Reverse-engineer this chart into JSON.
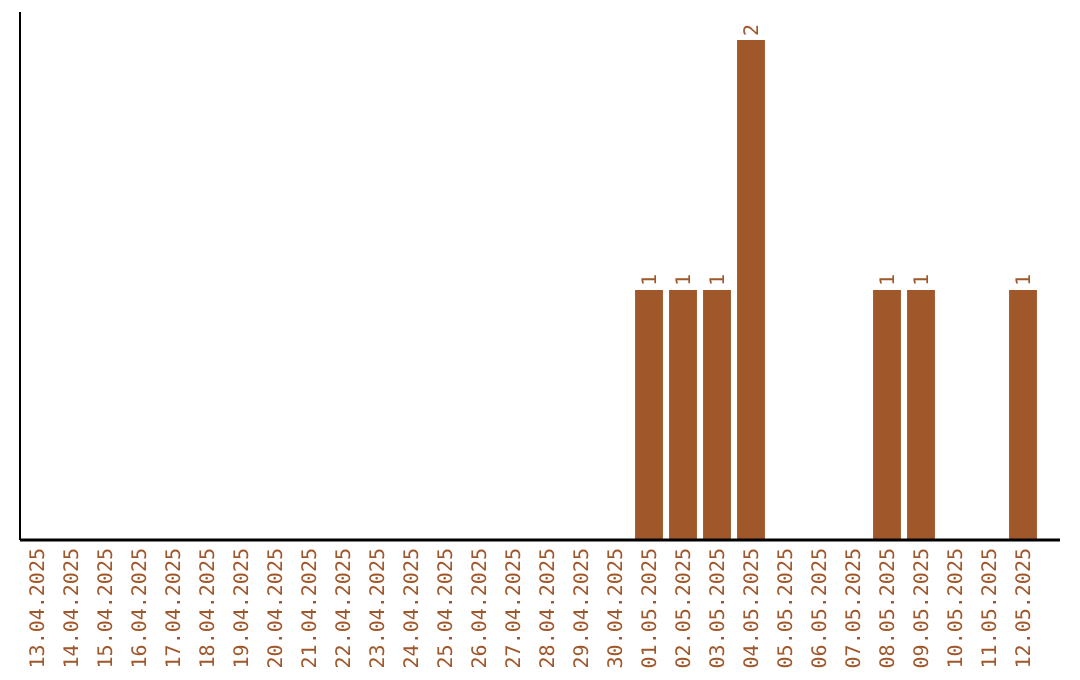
{
  "chart_data": {
    "type": "bar",
    "categories": [
      "13.04.2025",
      "14.04.2025",
      "15.04.2025",
      "16.04.2025",
      "17.04.2025",
      "18.04.2025",
      "19.04.2025",
      "20.04.2025",
      "21.04.2025",
      "22.04.2025",
      "23.04.2025",
      "24.04.2025",
      "25.04.2025",
      "26.04.2025",
      "27.04.2025",
      "28.04.2025",
      "29.04.2025",
      "30.04.2025",
      "01.05.2025",
      "02.05.2025",
      "03.05.2025",
      "04.05.2025",
      "05.05.2025",
      "06.05.2025",
      "07.05.2025",
      "08.05.2025",
      "09.05.2025",
      "10.05.2025",
      "11.05.2025",
      "12.05.2025"
    ],
    "values": [
      null,
      null,
      null,
      null,
      null,
      null,
      null,
      null,
      null,
      null,
      null,
      null,
      null,
      null,
      null,
      null,
      null,
      null,
      1,
      1,
      1,
      2,
      null,
      null,
      null,
      1,
      1,
      null,
      null,
      1
    ],
    "data_labels": true,
    "color": "#a0572a",
    "ylim": [
      0,
      2
    ],
    "tick_labels": "x"
  }
}
